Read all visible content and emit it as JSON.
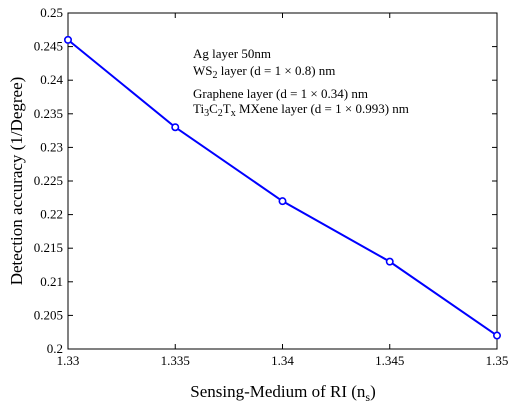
{
  "chart_data": {
    "type": "line",
    "x": [
      1.33,
      1.335,
      1.34,
      1.345,
      1.35
    ],
    "series": [
      {
        "values": [
          0.246,
          0.233,
          0.222,
          0.213,
          0.202
        ],
        "color": "#0000ff",
        "marker": "circle"
      }
    ],
    "xlim": [
      1.33,
      1.35
    ],
    "ylim": [
      0.2,
      0.25
    ],
    "xticks": [
      "1.33",
      "1.335",
      "1.34",
      "1.345",
      "1.35"
    ],
    "yticks": [
      "0.2",
      "0.205",
      "0.21",
      "0.215",
      "0.22",
      "0.225",
      "0.23",
      "0.235",
      "0.24",
      "0.245",
      "0.25"
    ],
    "xlabel": {
      "main": "Sensing-Medium of RI (n",
      "sub": "s",
      "close": ")"
    },
    "ylabel": "Detection accuracy (1/Degree)",
    "grid": false,
    "annotations": {
      "line1": "Ag layer  50nm",
      "line2": {
        "a": "WS",
        "a_sub": "2",
        "b": " layer (d = 1 × 0.8) nm"
      },
      "line3": "Graphene layer (d = 1 × 0.34) nm",
      "line4": {
        "a": "Ti",
        "a_sub": "3",
        "b": "C",
        "b_sub": "2",
        "c": "T",
        "c_sub": "x",
        "d": " MXene layer (d = 1 × 0.993) nm"
      }
    }
  }
}
